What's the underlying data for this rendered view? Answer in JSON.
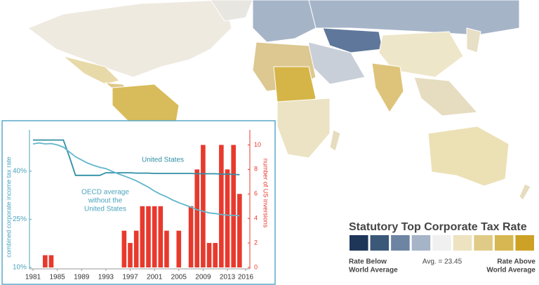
{
  "chart_data": {
    "type": "combo",
    "x": [
      1981,
      1982,
      1983,
      1984,
      1985,
      1986,
      1987,
      1988,
      1989,
      1990,
      1991,
      1992,
      1993,
      1994,
      1995,
      1996,
      1997,
      1998,
      1999,
      2000,
      2001,
      2002,
      2003,
      2004,
      2005,
      2006,
      2007,
      2008,
      2009,
      2010,
      2011,
      2012,
      2013,
      2014,
      2015
    ],
    "series": [
      {
        "name": "United States",
        "type": "line",
        "color": "#2f8fa4",
        "values": [
          49.7,
          49.7,
          49.7,
          49.7,
          49.7,
          49.7,
          44.5,
          38.7,
          38.7,
          38.7,
          38.7,
          38.7,
          39.5,
          39.5,
          39.5,
          39.5,
          39.5,
          39.4,
          39.4,
          39.4,
          39.3,
          39.3,
          39.3,
          39.3,
          39.3,
          39.3,
          39.3,
          39.2,
          39.2,
          39.2,
          39.2,
          39.1,
          39.1,
          39.0,
          38.9
        ]
      },
      {
        "name": "OECD average without the United States",
        "type": "line",
        "color": "#62b6cb",
        "values": [
          48.5,
          48.8,
          48.5,
          48.6,
          48.2,
          47.5,
          46,
          44.5,
          43.5,
          42.5,
          41.8,
          41.2,
          40.8,
          40,
          39.2,
          38.5,
          37.8,
          37,
          36,
          35,
          33.8,
          32.8,
          32,
          31,
          30.2,
          29.5,
          28.8,
          28,
          27.5,
          27,
          26.8,
          26.5,
          26.3,
          26.2,
          26.1
        ]
      },
      {
        "name": "number of US inversions",
        "type": "bar",
        "axis": "y2",
        "color": "#e8392d",
        "values": [
          0,
          0,
          1,
          1,
          0,
          0,
          0,
          0,
          0,
          0,
          0,
          0,
          0,
          0,
          0,
          3,
          2,
          3,
          5,
          5,
          5,
          5,
          3,
          0,
          3,
          0,
          5,
          8,
          10,
          2,
          2,
          10,
          8,
          10,
          6
        ]
      }
    ],
    "annotations": [
      "United States",
      "OECD average",
      "without the",
      "United States"
    ],
    "ylabel": "combined corporate income tax rate",
    "y2label": "number of US inversions",
    "xlim": [
      1981,
      2016
    ],
    "xticks": [
      1981,
      1985,
      1989,
      1993,
      1997,
      2001,
      2005,
      2009,
      2013,
      2016
    ],
    "ylim": [
      10,
      52
    ],
    "yticks": [
      {
        "value": 10,
        "label": "10%"
      },
      {
        "value": 25,
        "label": "25%"
      },
      {
        "value": 40,
        "label": "40%"
      }
    ],
    "y2lim": [
      0,
      11
    ],
    "y2ticks": [
      0,
      2,
      4,
      6,
      8,
      10
    ],
    "grid": false
  },
  "map_legend": {
    "title": "Statutory Top Corporate Tax Rate",
    "colors": [
      "#1e3658",
      "#3b5878",
      "#6e84a3",
      "#a6b4c8",
      "#f0f0f0",
      "#ede3c1",
      "#dfcb86",
      "#d6b751",
      "#cda126"
    ],
    "below": [
      "Rate Below",
      "World Average"
    ],
    "avg": "Avg. = 23.45",
    "above": [
      "Rate Above",
      "World Average"
    ]
  }
}
